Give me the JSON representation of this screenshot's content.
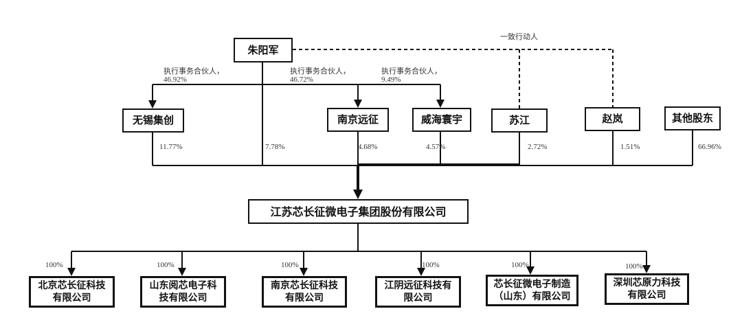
{
  "top_person": "朱阳军",
  "concert_party_label": "一致行动人",
  "partner_labels": [
    {
      "role": "执行事务合伙人，",
      "pct": "46.92%"
    },
    {
      "role": "执行事务合伙人，",
      "pct": "46.72%"
    },
    {
      "role": "执行事务合伙人，",
      "pct": "9.49%"
    }
  ],
  "shareholders": [
    {
      "name": "无锡集创",
      "pct": "11.77%"
    },
    {
      "name": "朱阳军",
      "pct": "7.78%"
    },
    {
      "name": "南京远征",
      "pct": "4.68%"
    },
    {
      "name": "威海寰宇",
      "pct": "4.57%"
    },
    {
      "name": "苏江",
      "pct": "2.72%"
    },
    {
      "name": "赵岚",
      "pct": "1.51%"
    },
    {
      "name": "其他股东",
      "pct": "66.96%"
    }
  ],
  "company": "江苏芯长征微电子集团股份有限公司",
  "subsidiaries": [
    {
      "line1": "北京芯长征科技",
      "line2": "有限公司",
      "pct": "100%"
    },
    {
      "line1": "山东阅芯电子科",
      "line2": "技有限公司",
      "pct": "100%"
    },
    {
      "line1": "南京芯长征科技",
      "line2": "有限公司",
      "pct": "100%"
    },
    {
      "line1": "江阴远征科技有",
      "line2": "限公司",
      "pct": "100%"
    },
    {
      "line1": "芯长征微电子制造",
      "line2": "（山东）有限公司",
      "pct": "100%"
    },
    {
      "line1": "深圳芯原力科技",
      "line2": "有限公司",
      "pct": "100%"
    }
  ],
  "colors": {
    "line": "#111111",
    "text": "#111111"
  }
}
